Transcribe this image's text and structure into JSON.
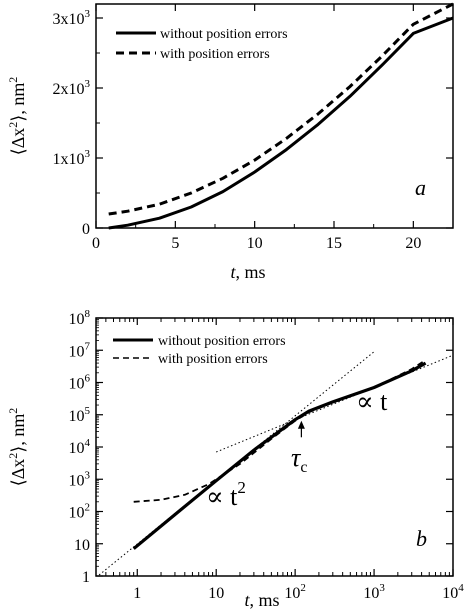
{
  "chart_data": [
    {
      "type": "line",
      "panel_label": "a",
      "xlabel_var": "t",
      "xlabel_unit": ", ms",
      "ylabel_main": "⟨Δx",
      "ylabel_sup": "2",
      "ylabel_end": "⟩,  nm",
      "ylabel_unit_sup": "2",
      "xlim": [
        0,
        22.5
      ],
      "ylim": [
        0,
        3200
      ],
      "x_ticks": [
        0,
        5,
        10,
        15,
        20
      ],
      "x_tick_labels": [
        "0",
        "5",
        "10",
        "15",
        "20"
      ],
      "y_ticks": [
        0,
        1000,
        2000,
        3000
      ],
      "y_tick_labels": [
        {
          "base": "0",
          "exp": ""
        },
        {
          "base": "1x10",
          "exp": "3"
        },
        {
          "base": "2x10",
          "exp": "3"
        },
        {
          "base": "3x10",
          "exp": "3"
        }
      ],
      "legend_position": "top-left",
      "series": [
        {
          "name": "without position errors",
          "style": "solid",
          "x": [
            0.8,
            2,
            4,
            6,
            8,
            10,
            12,
            14,
            16,
            18,
            20,
            22.5
          ],
          "y": [
            0,
            40,
            140,
            300,
            520,
            800,
            1120,
            1480,
            1880,
            2320,
            2780,
            3000
          ]
        },
        {
          "name": "with position errors",
          "style": "dashed",
          "x": [
            0.8,
            2,
            4,
            6,
            8,
            10,
            12,
            14,
            16,
            18,
            20,
            22.5
          ],
          "y": [
            200,
            240,
            340,
            500,
            710,
            970,
            1280,
            1630,
            2020,
            2450,
            2910,
            3200
          ]
        }
      ]
    },
    {
      "type": "line",
      "scale": "log-log",
      "panel_label": "b",
      "xlabel_var": "t",
      "xlabel_unit": ", ms",
      "ylabel_main": "⟨Δx",
      "ylabel_sup": "2",
      "ylabel_end": "⟩,  nm",
      "ylabel_unit_sup": "2",
      "xlim": [
        0.3,
        10000
      ],
      "ylim": [
        1,
        100000000
      ],
      "x_ticks": [
        1,
        10,
        100,
        1000,
        10000
      ],
      "x_tick_labels": [
        {
          "base": "1",
          "exp": ""
        },
        {
          "base": "10",
          "exp": ""
        },
        {
          "base": "10",
          "exp": "2"
        },
        {
          "base": "10",
          "exp": "3"
        },
        {
          "base": "10",
          "exp": "4"
        }
      ],
      "y_ticks": [
        1,
        10,
        100,
        1000,
        10000,
        100000,
        1000000,
        10000000,
        100000000
      ],
      "y_tick_labels": [
        {
          "base": "1",
          "exp": ""
        },
        {
          "base": "10",
          "exp": ""
        },
        {
          "base": "10",
          "exp": "2"
        },
        {
          "base": "10",
          "exp": "3"
        },
        {
          "base": "10",
          "exp": "4"
        },
        {
          "base": "10",
          "exp": "5"
        },
        {
          "base": "10",
          "exp": "6"
        },
        {
          "base": "10",
          "exp": "7"
        },
        {
          "base": "10",
          "exp": "8"
        }
      ],
      "legend_position": "top-left",
      "series": [
        {
          "name": "without position errors",
          "style": "solid",
          "x": [
            0.9,
            3,
            10,
            30,
            100,
            150,
            300,
            1000,
            3000,
            4500
          ],
          "y": [
            7,
            80,
            900,
            8000,
            70000,
            130000,
            250000,
            700000,
            2300000,
            4000000
          ]
        },
        {
          "name": "with position errors",
          "style": "dashed",
          "x": [
            0.9,
            2,
            4,
            8,
            20,
            50,
            100,
            150,
            300,
            1000,
            3000,
            4500
          ],
          "y": [
            200,
            230,
            330,
            700,
            3000,
            18000,
            65000,
            120000,
            240000,
            700000,
            2600000,
            5000000
          ]
        },
        {
          "name": "",
          "style": "dotted",
          "x": [
            0.3,
            1000
          ],
          "y": [
            0.9,
            9000000
          ]
        },
        {
          "name": "",
          "style": "dotted",
          "x": [
            10,
            10000
          ],
          "y": [
            7000,
            7000000
          ]
        }
      ],
      "annotations": {
        "t2_text": "∝ t",
        "t2_sup": "2",
        "t1_text": "∝ t",
        "tau_text": "τ",
        "tau_sub": "c",
        "tau_x": 120,
        "tau_arrow_from_y": 20000,
        "tau_arrow_to_y": 65000
      }
    }
  ]
}
